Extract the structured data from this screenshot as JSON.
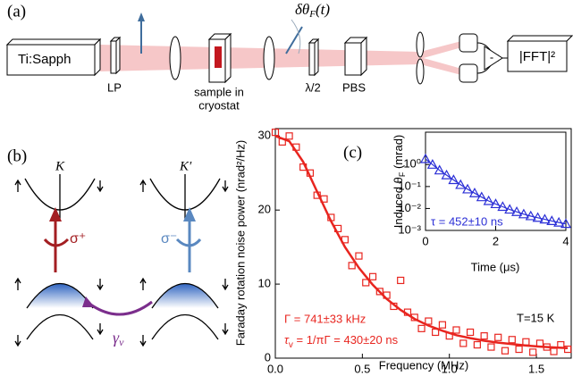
{
  "panel_a": {
    "label": "(a)",
    "laser": "Ti:Sapph",
    "polarizer": "LP",
    "sample_line1": "sample in",
    "sample_line2": "cryostat",
    "rotation_main": "δθ",
    "rotation_sub": "F",
    "rotation_arg": "(t)",
    "waveplate": "λ/2",
    "splitter": "PBS",
    "minus": "-",
    "analyzer": "|FFT|²"
  },
  "panel_b": {
    "label": "(b)",
    "valley_left": "K",
    "valley_right": "K′",
    "sigma_plus": "σ⁺",
    "sigma_minus": "σ⁻",
    "gamma_main": "γ",
    "gamma_sub": "v"
  },
  "chart_data": [
    {
      "type": "scatter",
      "label": "(c)",
      "xlabel": "Frequency (MHz)",
      "ylabel": "Faraday rotation noise power (nrad²/Hz)",
      "xlim": [
        0,
        1.7
      ],
      "xticks": [
        {
          "value": 0,
          "label": "0.0"
        },
        0.5,
        {
          "value": 1,
          "label": "1.0"
        },
        1.5
      ],
      "ylim": [
        0,
        31
      ],
      "yticks": [
        0,
        10,
        20,
        30
      ],
      "annotations": [
        "Γ = 741±33 kHz",
        "τ",
        "v",
        " = 1/πΓ = 430±20 ns",
        "T=15 K"
      ],
      "series": [
        {
          "type": "scatter",
          "marker": "square",
          "color": "#e8251f",
          "x": [
            0,
            0.04,
            0.08,
            0.12,
            0.16,
            0.2,
            0.24,
            0.28,
            0.32,
            0.36,
            0.4,
            0.44,
            0.48,
            0.52,
            0.56,
            0.6,
            0.64,
            0.68,
            0.72,
            0.76,
            0.8,
            0.84,
            0.88,
            0.92,
            0.96,
            1.0,
            1.04,
            1.08,
            1.12,
            1.16,
            1.2,
            1.24,
            1.28,
            1.32,
            1.36,
            1.4,
            1.44,
            1.48,
            1.52,
            1.56,
            1.6,
            1.64,
            1.68
          ],
          "values": [
            30.5,
            29.2,
            30,
            28.5,
            25.8,
            25,
            22,
            21.5,
            19,
            17.5,
            16,
            12.5,
            13.8,
            10.2,
            11,
            9,
            8.5,
            7,
            10.5,
            6.2,
            5.5,
            4,
            5,
            3.5,
            4.5,
            3,
            3.8,
            2,
            3.5,
            1.8,
            3,
            1.5,
            2.8,
            1,
            2.5,
            1.2,
            2.2,
            0.8,
            2,
            1.5,
            0.9,
            1.8,
            1.2
          ]
        },
        {
          "type": "line",
          "color": "#e8251f",
          "x": [
            0,
            0.08,
            0.16,
            0.24,
            0.32,
            0.4,
            0.48,
            0.56,
            0.64,
            0.72,
            0.8,
            0.88,
            0.96,
            1.04,
            1.12,
            1.2,
            1.28,
            1.36,
            1.44,
            1.52,
            1.6,
            1.68
          ],
          "values": [
            30,
            29.3,
            26.5,
            22.5,
            18.5,
            15,
            12.2,
            9.9,
            8,
            6.5,
            5.3,
            4.4,
            3.7,
            3.1,
            2.7,
            2.35,
            2.1,
            1.9,
            1.7,
            1.55,
            1.45,
            1.35
          ]
        }
      ]
    },
    {
      "type": "scatter",
      "ylog": true,
      "xlabel": "Time (μs)",
      "ylabel_main": "Induced θ",
      "ylabel_sub": "F",
      "ylabel_unit": " (mrad)",
      "xlim": [
        0,
        4
      ],
      "xticks": [
        0,
        2,
        4
      ],
      "ylim": [
        0.001,
        30
      ],
      "yticks": [
        {
          "value": 1,
          "label": "10⁰"
        },
        {
          "value": 0.1,
          "label": "10⁻¹"
        },
        {
          "value": 0.01,
          "label": "10⁻²"
        },
        {
          "value": 0.001,
          "label": "10⁻³"
        }
      ],
      "annotations": [
        "τ = 452±10 ns"
      ],
      "series": [
        {
          "type": "scatter",
          "marker": "triangle",
          "color": "#2b2fd6",
          "line": true,
          "x": [
            0,
            0.2,
            0.4,
            0.6,
            0.8,
            1.0,
            1.2,
            1.4,
            1.6,
            1.8,
            2.0,
            2.2,
            2.4,
            2.6,
            2.8,
            3.0,
            3.2,
            3.4,
            3.6,
            3.8,
            4.0
          ],
          "values": [
            1.8,
            1.0,
            0.55,
            0.33,
            0.2,
            0.12,
            0.075,
            0.05,
            0.033,
            0.022,
            0.016,
            0.012,
            0.009,
            0.007,
            0.0055,
            0.0045,
            0.0038,
            0.0032,
            0.0027,
            0.0023,
            0.002
          ]
        }
      ]
    }
  ]
}
